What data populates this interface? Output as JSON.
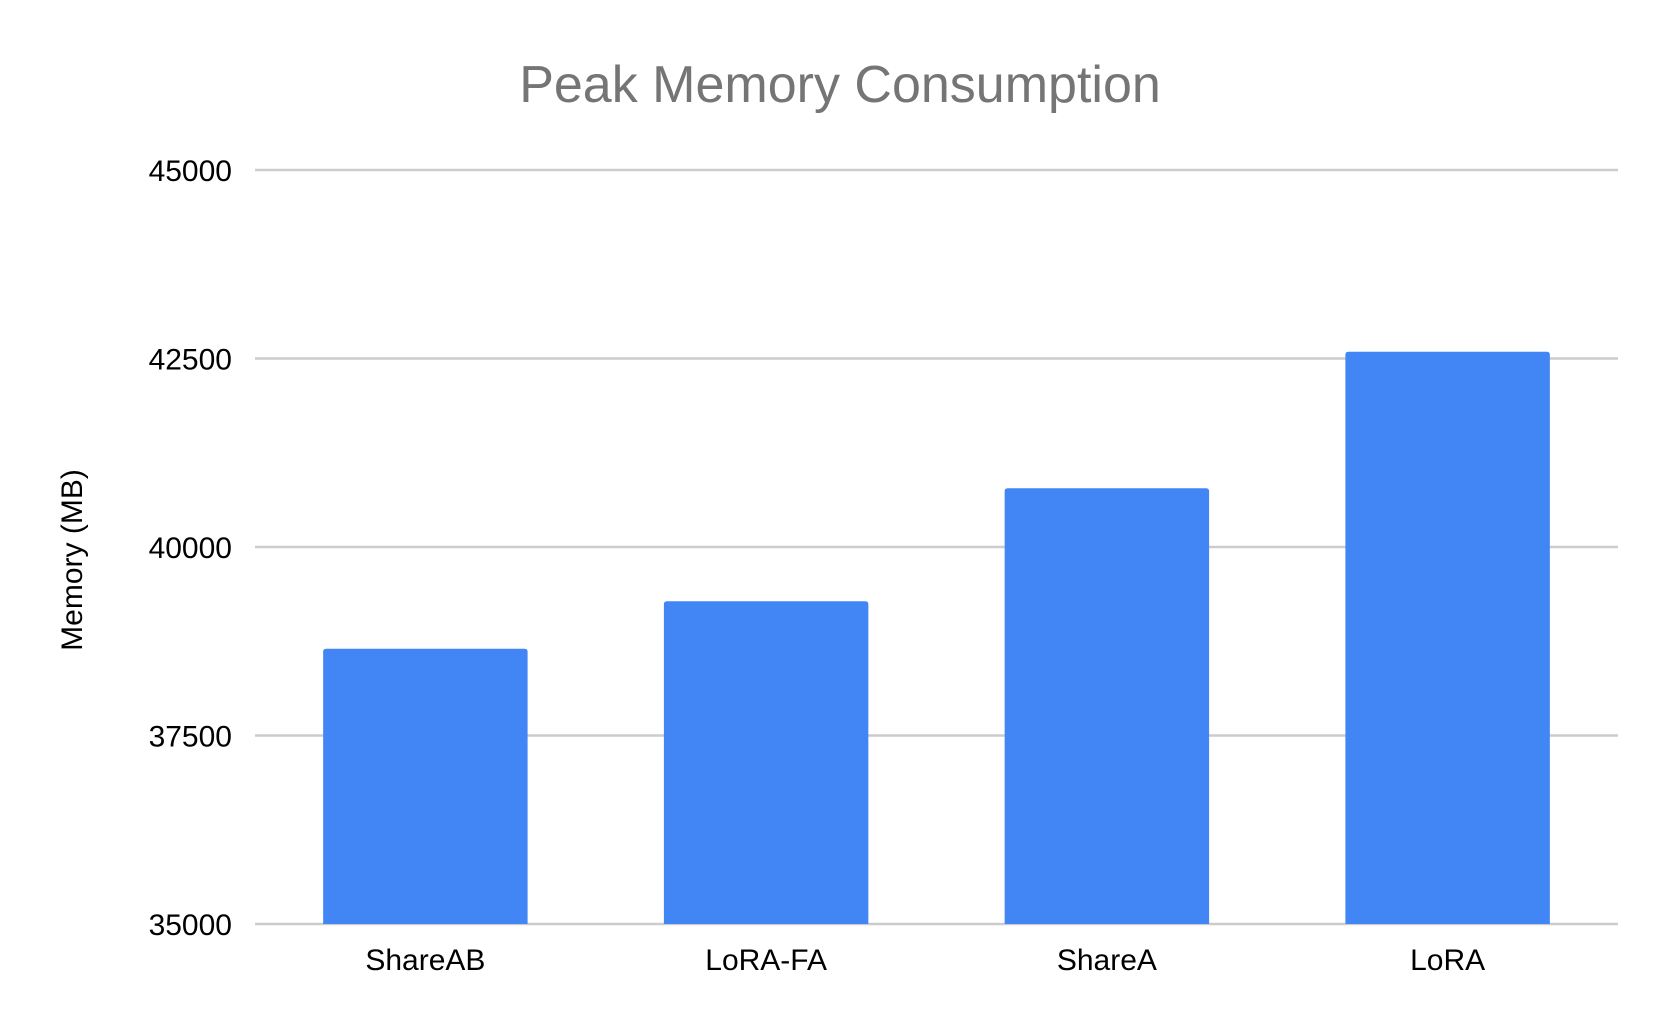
{
  "chart_data": {
    "type": "bar",
    "title": "Peak Memory Consumption",
    "xlabel": "",
    "ylabel": "Memory (MB)",
    "categories": [
      "ShareAB",
      "LoRA-FA",
      "ShareA",
      "LoRA"
    ],
    "values": [
      38650,
      39280,
      40780,
      42590
    ],
    "ylim": [
      35000,
      45000
    ],
    "yticks": [
      "35000",
      "37500",
      "40000",
      "42500",
      "45000"
    ],
    "grid": true,
    "legend": "none",
    "colors": {
      "bar": "#4285F4",
      "gridline": "#cccccc",
      "title": "#757575",
      "axis_text": "#000000"
    }
  }
}
